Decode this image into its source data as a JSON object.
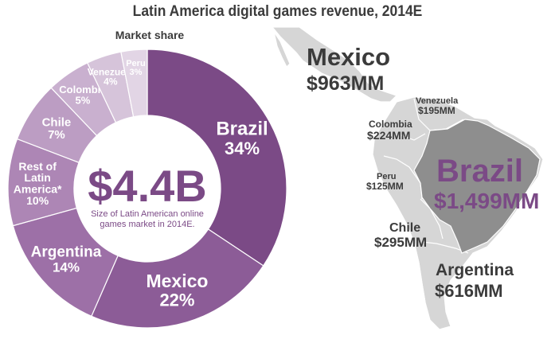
{
  "chart_data": [
    {
      "type": "pie",
      "title": "Latin America digital games revenue, 2014E",
      "subtitle": "Market share",
      "center": {
        "value": "$4.4B",
        "caption_line1": "Size of Latin American online",
        "caption_line2": "games market in 2014E."
      },
      "slices": [
        {
          "label": "Brazil",
          "percent": 34,
          "percent_text": "34%",
          "color": "#7b4a86"
        },
        {
          "label": "Mexico",
          "percent": 22,
          "percent_text": "22%",
          "color": "#8c5c97"
        },
        {
          "label": "Argentina",
          "percent": 14,
          "percent_text": "14%",
          "color": "#9d70a7"
        },
        {
          "label": "Rest of Latin America*",
          "label_lines": [
            "Rest of",
            "Latin",
            "America*"
          ],
          "percent": 10,
          "percent_text": "10%",
          "color": "#ad86b5"
        },
        {
          "label": "Chile",
          "percent": 7,
          "percent_text": "7%",
          "color": "#bc9dc3"
        },
        {
          "label": "Colombia",
          "percent": 5,
          "percent_text": "5%",
          "color": "#c9b0cf"
        },
        {
          "label": "Venezuela",
          "percent": 4,
          "percent_text": "4%",
          "color": "#d6c4da"
        },
        {
          "label": "Peru",
          "percent": 3,
          "percent_text": "3%",
          "color": "#e2d5e5"
        }
      ]
    },
    {
      "type": "map",
      "regions": [
        {
          "name": "Mexico",
          "value_text": "$963MM",
          "value_mm": 963
        },
        {
          "name": "Venezuela",
          "value_text": "$195MM",
          "value_mm": 195
        },
        {
          "name": "Colombia",
          "value_text": "$224MM",
          "value_mm": 224
        },
        {
          "name": "Peru",
          "value_text": "$125MM",
          "value_mm": 125
        },
        {
          "name": "Brazil",
          "value_text": "$1,499MM",
          "value_mm": 1499
        },
        {
          "name": "Chile",
          "value_text": "$295MM",
          "value_mm": 295
        },
        {
          "name": "Argentina",
          "value_text": "$616MM",
          "value_mm": 616
        }
      ],
      "colors": {
        "land": "#d6d6d6",
        "border": "#ffffff",
        "highlight": "#8e8e8e",
        "brazil_text": "#7b4a86",
        "text": "#3b3b3b"
      }
    }
  ]
}
